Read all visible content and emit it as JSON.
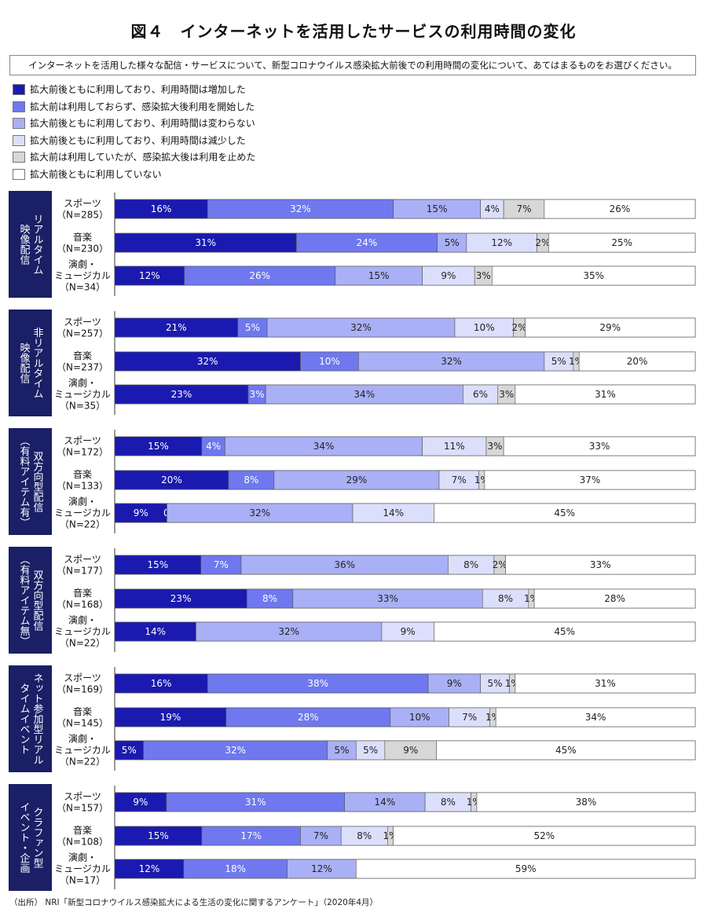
{
  "title": "図４　インターネットを活用したサービスの利用時間の変化",
  "question": "インターネットを活用した様々な配信・サービスについて、新型コロナウイルス感染拡大前後での利用時間の変化について、あてはまるものをお選びください。",
  "source": "（出所） NRI「新型コロナウイルス感染拡大による生活の変化に関するアンケート」（2020年4月）",
  "legend": [
    {
      "label": "拡大前後ともに利用しており、利用時間は増加した",
      "color": "#1a1ab0"
    },
    {
      "label": "拡大前は利用しておらず、感染拡大後利用を開始した",
      "color": "#6f78ee"
    },
    {
      "label": "拡大前後ともに利用しており、利用時間は変わらない",
      "color": "#aab0f5"
    },
    {
      "label": "拡大前後ともに利用しており、利用時間は減少した",
      "color": "#dcdffb"
    },
    {
      "label": "拡大前は利用していたが、感染拡大後は利用を止めた",
      "color": "#d7d7d7"
    },
    {
      "label": "拡大前後ともに利用していない",
      "color": "#ffffff"
    }
  ],
  "chart_data": {
    "type": "bar",
    "orientation": "horizontal",
    "stacked": true,
    "unit": "%",
    "groups": [
      {
        "label": "リアルタイム\n映像配信",
        "rows": [
          {
            "label": "スポーツ\n（N=285）",
            "values": [
              16,
              32,
              15,
              4,
              7,
              26
            ]
          },
          {
            "label": "音楽\n（N=230）",
            "values": [
              31,
              24,
              5,
              12,
              2,
              25
            ]
          },
          {
            "label": "演劇・\nミュージカル\n（N=34）",
            "values": [
              12,
              26,
              15,
              9,
              3,
              35
            ]
          }
        ]
      },
      {
        "label": "非リアルタイム\n映像配信",
        "rows": [
          {
            "label": "スポーツ\n（N=257）",
            "values": [
              21,
              5,
              32,
              10,
              2,
              29
            ]
          },
          {
            "label": "音楽\n（N=237）",
            "values": [
              32,
              10,
              32,
              5,
              1,
              20
            ]
          },
          {
            "label": "演劇・\nミュージカル\n（N=35）",
            "values": [
              23,
              3,
              34,
              6,
              3,
              31
            ]
          }
        ]
      },
      {
        "label": "双方向型配信\n（有料アイテム有）",
        "rows": [
          {
            "label": "スポーツ\n（N=172）",
            "values": [
              15,
              4,
              34,
              11,
              3,
              33
            ]
          },
          {
            "label": "音楽\n（N=133）",
            "values": [
              20,
              8,
              29,
              7,
              1,
              37
            ]
          },
          {
            "label": "演劇・\nミュージカル\n（N=22）",
            "values": [
              9,
              0,
              32,
              14,
              0,
              45
            ]
          }
        ]
      },
      {
        "label": "双方向型配信\n（有料アイテム無）",
        "rows": [
          {
            "label": "スポーツ\n（N=177）",
            "values": [
              15,
              7,
              36,
              8,
              2,
              33
            ]
          },
          {
            "label": "音楽\n（N=168）",
            "values": [
              23,
              8,
              33,
              8,
              1,
              28
            ]
          },
          {
            "label": "演劇・\nミュージカル\n（N=22）",
            "values": [
              14,
              0,
              32,
              9,
              0,
              45
            ]
          }
        ]
      },
      {
        "label": "ネット参加型リアル\nタイムイベント",
        "rows": [
          {
            "label": "スポーツ\n（N=169）",
            "values": [
              16,
              38,
              9,
              5,
              1,
              31
            ]
          },
          {
            "label": "音楽\n（N=145）",
            "values": [
              19,
              28,
              10,
              7,
              1,
              34
            ]
          },
          {
            "label": "演劇・\nミュージカル\n（N=22）",
            "values": [
              5,
              32,
              5,
              5,
              9,
              45
            ]
          }
        ]
      },
      {
        "label": "クラファン型\nイベント・企画",
        "rows": [
          {
            "label": "スポーツ\n（N=157）",
            "values": [
              9,
              31,
              14,
              8,
              1,
              38
            ]
          },
          {
            "label": "音楽\n（N=108）",
            "values": [
              15,
              17,
              7,
              8,
              1,
              52
            ]
          },
          {
            "label": "演劇・\nミュージカル\n（N=17）",
            "values": [
              12,
              18,
              12,
              0,
              0,
              59
            ]
          }
        ]
      }
    ]
  }
}
